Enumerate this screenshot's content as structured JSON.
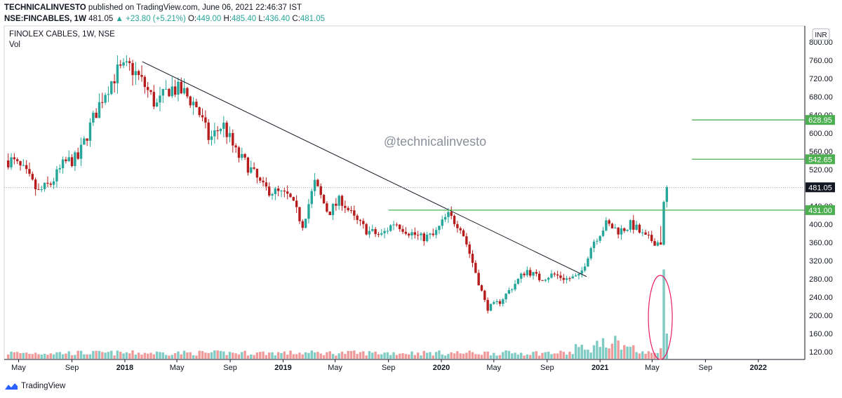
{
  "header": {
    "author": "TECHNICALINVESTO",
    "published": "published on TradingView.com, June 06, 2021 22:46:37 IST",
    "symbol": "NSE:FINCABLES, 1W",
    "last": "481.05",
    "change": "+23.80 (+5.21%)",
    "o_label": "O:",
    "o": "449.00",
    "h_label": "H:",
    "h": "485.40",
    "l_label": "L:",
    "l": "436.40",
    "c_label": "C:",
    "c": "481.05"
  },
  "legend": {
    "title": "FINOLEX CABLES, 1W, NSE",
    "vol": "Vol"
  },
  "watermark": "@technicalinvesto",
  "footer": {
    "brand": "TradingView"
  },
  "colors": {
    "up": "#26a69a",
    "down": "#b71c1c",
    "level": "#4caf50",
    "ellipse": "#e91e63",
    "trendline": "#131722"
  },
  "chart_data": {
    "type": "candlestick",
    "currency": "INR",
    "y_range": [
      100,
      820
    ],
    "y_ticks": [
      120,
      160,
      200,
      240,
      280,
      320,
      360,
      400,
      440,
      480,
      520,
      560,
      600,
      640,
      680,
      720,
      760,
      800
    ],
    "y_tick_labels": [
      "120.00",
      "160.00",
      "200.00",
      "240.00",
      "280.00",
      "320.00",
      "360.00",
      "400.00",
      "440.00",
      "480.00",
      "520.00",
      "560.00",
      "600.00",
      "640.00",
      "680.00",
      "720.00",
      "760.00",
      "800.00"
    ],
    "x_labels": [
      {
        "label": "May",
        "date": "2017-05"
      },
      {
        "label": "Sep",
        "date": "2017-09"
      },
      {
        "label": "2018",
        "date": "2018-01"
      },
      {
        "label": "May",
        "date": "2018-05"
      },
      {
        "label": "Sep",
        "date": "2018-09"
      },
      {
        "label": "2019",
        "date": "2019-01"
      },
      {
        "label": "May",
        "date": "2019-05"
      },
      {
        "label": "Sep",
        "date": "2019-09"
      },
      {
        "label": "2020",
        "date": "2020-01"
      },
      {
        "label": "May",
        "date": "2020-05"
      },
      {
        "label": "Sep",
        "date": "2020-09"
      },
      {
        "label": "2021",
        "date": "2021-01"
      },
      {
        "label": "May",
        "date": "2021-05"
      },
      {
        "label": "Sep",
        "date": "2021-09"
      },
      {
        "label": "2022",
        "date": "2022-01"
      }
    ],
    "price_keyframes": [
      {
        "date": "2017-04",
        "price": 540
      },
      {
        "date": "2017-05",
        "price": 515
      },
      {
        "date": "2017-06",
        "price": 470
      },
      {
        "date": "2017-07",
        "price": 490
      },
      {
        "date": "2017-08",
        "price": 535
      },
      {
        "date": "2017-09",
        "price": 545
      },
      {
        "date": "2017-10",
        "price": 620
      },
      {
        "date": "2017-11",
        "price": 690
      },
      {
        "date": "2017-12",
        "price": 735
      },
      {
        "date": "2018-01",
        "price": 745
      },
      {
        "date": "2018-02",
        "price": 705
      },
      {
        "date": "2018-03",
        "price": 660
      },
      {
        "date": "2018-04",
        "price": 700
      },
      {
        "date": "2018-05",
        "price": 690
      },
      {
        "date": "2018-06",
        "price": 660
      },
      {
        "date": "2018-07",
        "price": 585
      },
      {
        "date": "2018-08",
        "price": 620
      },
      {
        "date": "2018-09",
        "price": 555
      },
      {
        "date": "2018-10",
        "price": 525
      },
      {
        "date": "2018-11",
        "price": 480
      },
      {
        "date": "2018-12",
        "price": 470
      },
      {
        "date": "2019-01",
        "price": 460
      },
      {
        "date": "2019-02",
        "price": 400
      },
      {
        "date": "2019-03",
        "price": 490
      },
      {
        "date": "2019-04",
        "price": 425
      },
      {
        "date": "2019-05",
        "price": 455
      },
      {
        "date": "2019-06",
        "price": 410
      },
      {
        "date": "2019-07",
        "price": 385
      },
      {
        "date": "2019-08",
        "price": 375
      },
      {
        "date": "2019-09",
        "price": 405
      },
      {
        "date": "2019-10",
        "price": 385
      },
      {
        "date": "2019-11",
        "price": 370
      },
      {
        "date": "2019-12",
        "price": 375
      },
      {
        "date": "2020-01",
        "price": 420
      },
      {
        "date": "2020-02",
        "price": 395
      },
      {
        "date": "2020-03",
        "price": 310
      },
      {
        "date": "2020-04",
        "price": 215
      },
      {
        "date": "2020-05",
        "price": 230
      },
      {
        "date": "2020-06",
        "price": 265
      },
      {
        "date": "2020-07",
        "price": 300
      },
      {
        "date": "2020-08",
        "price": 280
      },
      {
        "date": "2020-09",
        "price": 290
      },
      {
        "date": "2020-10",
        "price": 280
      },
      {
        "date": "2020-11",
        "price": 285
      },
      {
        "date": "2020-12",
        "price": 360
      },
      {
        "date": "2021-01",
        "price": 400
      },
      {
        "date": "2021-02",
        "price": 385
      },
      {
        "date": "2021-03",
        "price": 400
      },
      {
        "date": "2021-04",
        "price": 370
      },
      {
        "date": "2021-05",
        "price": 360
      },
      {
        "date": "2021-06",
        "price": 481.05
      }
    ],
    "levels": [
      {
        "price": 628.95,
        "label": "628.95",
        "from": "2021-08",
        "to": "2022-03"
      },
      {
        "price": 542.65,
        "label": "542.65",
        "from": "2021-08",
        "to": "2022-03"
      },
      {
        "price": 431.0,
        "label": "431.00",
        "from": "2019-09",
        "to": "2022-03"
      }
    ],
    "last_price": {
      "price": 481.05,
      "label": "481.05"
    },
    "trendline": {
      "from": {
        "date": "2018-02",
        "price": 757
      },
      "to": {
        "date": "2020-12",
        "price": 285
      }
    },
    "volume_ellipse": {
      "date": "2021-05-20",
      "label": ""
    },
    "grid": false,
    "legend_position": "top-left"
  }
}
